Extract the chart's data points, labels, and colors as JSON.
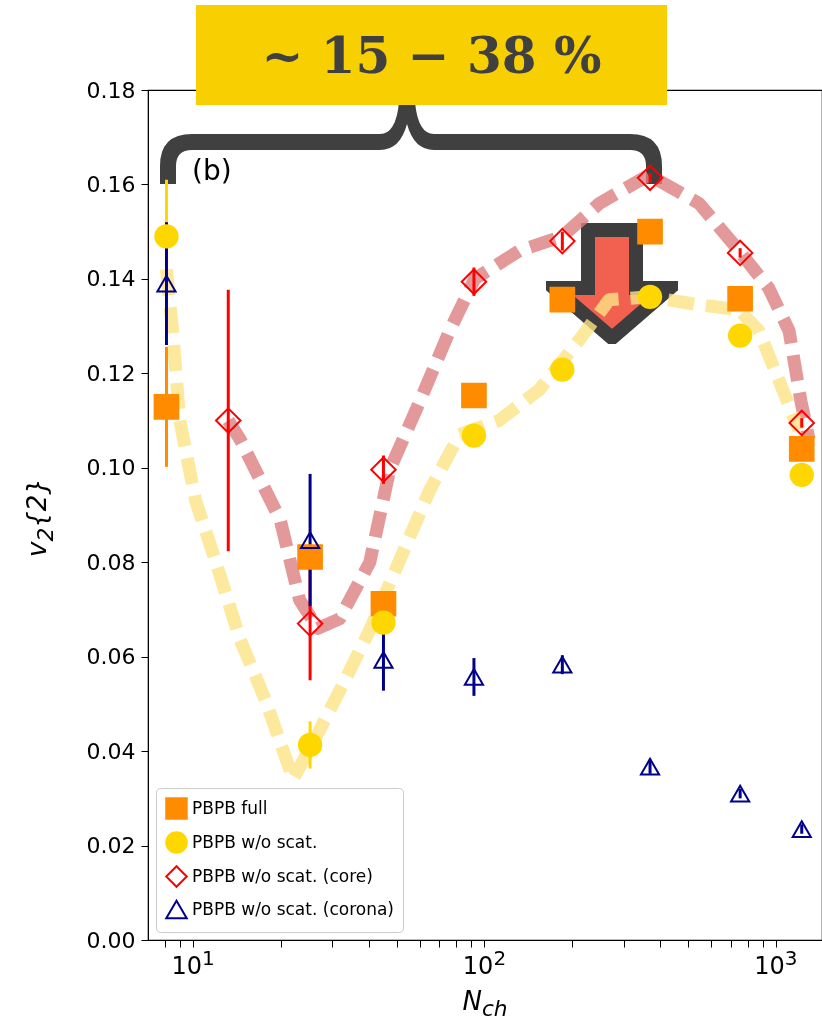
{
  "chart_data": {
    "type": "scatter",
    "xlabel": "N$_{ch}$",
    "ylabel": "v$_{2}${2}",
    "annotations": [
      "~ 15 − 38 %",
      "(b)"
    ],
    "log": "x",
    "xlim": [
      7,
      1440
    ],
    "xticks": [
      {
        "value": 8,
        "label": null
      },
      {
        "value": 9,
        "label": null
      },
      {
        "value": 10,
        "label": "10$^{1}$"
      },
      {
        "value": 20,
        "label": null
      },
      {
        "value": 30,
        "label": null
      },
      {
        "value": 40,
        "label": null
      },
      {
        "value": 50,
        "label": null
      },
      {
        "value": 60,
        "label": null
      },
      {
        "value": 70,
        "label": null
      },
      {
        "value": 80,
        "label": null
      },
      {
        "value": 90,
        "label": null
      },
      {
        "value": 100,
        "label": "10$^{2}$"
      },
      {
        "value": 200,
        "label": null
      },
      {
        "value": 300,
        "label": null
      },
      {
        "value": 400,
        "label": null
      },
      {
        "value": 500,
        "label": null
      },
      {
        "value": 600,
        "label": null
      },
      {
        "value": 700,
        "label": null
      },
      {
        "value": 800,
        "label": null
      },
      {
        "value": 900,
        "label": null
      },
      {
        "value": 1000,
        "label": "10$^{3}$"
      }
    ],
    "ylim": [
      0,
      0.18
    ],
    "yticks": [
      {
        "value": 0,
        "label": "0.00"
      },
      {
        "value": 0.02,
        "label": "0.02"
      },
      {
        "value": 0.04,
        "label": "0.04"
      },
      {
        "value": 0.06,
        "label": "0.06"
      },
      {
        "value": 0.08,
        "label": "0.08"
      },
      {
        "value": 0.1,
        "label": "0.10"
      },
      {
        "value": 0.12,
        "label": "0.12"
      },
      {
        "value": 0.14,
        "label": "0.14"
      },
      {
        "value": 0.16,
        "label": "0.16"
      },
      {
        "value": 0.18,
        "label": "0.18"
      }
    ],
    "grid": false,
    "legend": "bottom left",
    "x": [
      8.1,
      25.2,
      45,
      92,
      185,
      370,
      754,
      1227
    ],
    "series": [
      {
        "type": "line",
        "line_style": "dashed",
        "color": "#dc7f7f",
        "x": [
          13.2,
          14.5,
          19.9,
          23.2,
          26.8,
          31.8,
          40.4,
          47.3,
          59.9,
          75.9,
          92.5,
          132,
          185,
          248,
          367,
          545,
          747,
          946,
          1110,
          1220,
          1300
        ],
        "values": [
          0.11,
          0.106,
          0.089,
          0.072,
          0.066,
          0.068,
          0.08,
          0.0996,
          0.114,
          0.129,
          0.14,
          0.146,
          0.149,
          0.156,
          0.162,
          0.156,
          0.146,
          0.138,
          0.129,
          0.114,
          0.106
        ]
      },
      {
        "type": "line",
        "line_style": "dashed",
        "color": "#fbe384",
        "x": [
          8.1,
          8.5,
          9.0,
          10.2,
          11.9,
          14.5,
          17.7,
          21.5,
          22.0,
          27.2,
          33.2,
          40.4,
          51.2,
          64.9,
          82.1,
          112,
          154,
          211,
          268,
          367,
          545,
          747,
          875,
          1023,
          1199
        ],
        "values": [
          0.142,
          0.129,
          0.11,
          0.093,
          0.0805,
          0.0636,
          0.0508,
          0.036,
          0.034,
          0.0445,
          0.055,
          0.0657,
          0.0805,
          0.0953,
          0.107,
          0.11,
          0.1165,
          0.127,
          0.1356,
          0.1362,
          0.1345,
          0.1335,
          0.129,
          0.1186,
          0.108
        ]
      },
      {
        "name": "PBPB full",
        "marker": "square",
        "color": "#ff8c00",
        "values": [
          0.1129,
          0.0811,
          0.0712,
          0.1153,
          0.1356,
          0.15,
          0.1358,
          0.104
        ],
        "errors": [
          0.0127,
          null,
          null,
          null,
          null,
          null,
          null,
          null
        ]
      },
      {
        "name": "PBPB w/o scat.",
        "marker": "circle",
        "color": "#ffd700",
        "values": [
          0.149,
          0.0413,
          0.0672,
          0.1068,
          0.1208,
          0.1362,
          0.128,
          0.0985
        ],
        "errors": [
          0.012,
          0.005,
          null,
          null,
          null,
          null,
          null,
          null
        ]
      },
      {
        "name": "PBPB w/o scat. (core)",
        "marker": "diamond",
        "color": "#ff0000",
        "x": [
          13.2,
          25.2,
          45,
          92,
          185,
          370,
          754,
          1227
        ],
        "values": [
          0.11,
          0.067,
          0.0996,
          0.1394,
          0.148,
          0.1614,
          0.1455,
          0.1095
        ],
        "errors": [
          0.0277,
          0.012,
          0.003,
          0.003,
          0.002,
          0.001,
          0.001,
          0.001
        ]
      },
      {
        "name": "PBPB w/o scat. (corona)",
        "marker": "triangle",
        "color": "#00008b",
        "values": [
          0.139,
          0.0847,
          0.0593,
          0.0557,
          0.0583,
          0.0367,
          0.031,
          0.0235
        ],
        "errors": [
          0.013,
          0.014,
          0.0065,
          0.004,
          0.002,
          0.0015,
          0.001,
          0.001
        ]
      }
    ]
  }
}
